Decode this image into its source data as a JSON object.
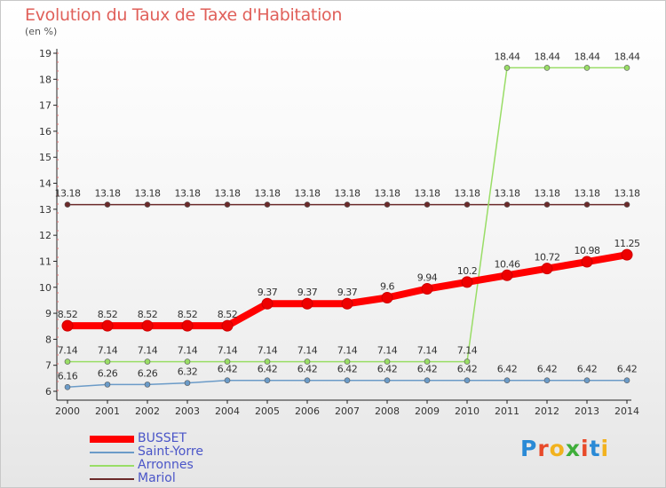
{
  "title": "Evolution du Taux de Taxe d'Habitation",
  "unit": "(en %)",
  "logo_text": "Proxiti",
  "chart_data": {
    "type": "line",
    "title": "Evolution du Taux de Taxe d'Habitation",
    "ylabel": "(en %)",
    "x": [
      "2000",
      "2001",
      "2002",
      "2003",
      "2004",
      "2005",
      "2006",
      "2007",
      "2008",
      "2009",
      "2010",
      "2011",
      "2012",
      "2013",
      "2014"
    ],
    "yticks": [
      "6",
      "7",
      "8",
      "9",
      "10",
      "11",
      "12",
      "13",
      "14",
      "15",
      "16",
      "17",
      "18",
      "19"
    ],
    "ylim": [
      6,
      19
    ],
    "grid": false,
    "legend_position": "bottom-left",
    "series": [
      {
        "name": "BUSSET",
        "color": "#ff0000",
        "values": [
          8.52,
          8.52,
          8.52,
          8.52,
          8.52,
          9.37,
          9.37,
          9.37,
          9.6,
          9.94,
          10.2,
          10.46,
          10.72,
          10.98,
          11.25
        ],
        "labels": [
          "8.52",
          "8.52",
          "8.52",
          "8.52",
          "8.52",
          "9.37",
          "9.37",
          "9.37",
          "9.6",
          "9.94",
          "10.2",
          "10.46",
          "10.72",
          "10.98",
          "11.25"
        ]
      },
      {
        "name": "Saint-Yorre",
        "color": "#6b9bc8",
        "values": [
          6.16,
          6.26,
          6.26,
          6.32,
          6.42,
          6.42,
          6.42,
          6.42,
          6.42,
          6.42,
          6.42,
          6.42,
          6.42,
          6.42,
          6.42
        ],
        "labels": [
          "6.16",
          "6.26",
          "6.26",
          "6.32",
          "6.42",
          "6.42",
          "6.42",
          "6.42",
          "6.42",
          "6.42",
          "6.42",
          "6.42",
          "6.42",
          "6.42",
          "6.42"
        ]
      },
      {
        "name": "Arronnes",
        "color": "#99dd66",
        "values": [
          7.14,
          7.14,
          7.14,
          7.14,
          7.14,
          7.14,
          7.14,
          7.14,
          7.14,
          7.14,
          7.14,
          18.44,
          18.44,
          18.44,
          18.44
        ],
        "labels": [
          "7.14",
          "7.14",
          "7.14",
          "7.14",
          "7.14",
          "7.14",
          "7.14",
          "7.14",
          "7.14",
          "7.14",
          "7.14",
          "18.44",
          "18.44",
          "18.44",
          "18.44"
        ]
      },
      {
        "name": "Mariol",
        "color": "#6b2a2a",
        "values": [
          13.18,
          13.18,
          13.18,
          13.18,
          13.18,
          13.18,
          13.18,
          13.18,
          13.18,
          13.18,
          13.18,
          13.18,
          13.18,
          13.18,
          13.18
        ],
        "labels": [
          "13.18",
          "13.18",
          "13.18",
          "13.18",
          "13.18",
          "13.18",
          "13.18",
          "13.18",
          "13.18",
          "13.18",
          "13.18",
          "13.18",
          "13.18",
          "13.18",
          "13.18"
        ]
      }
    ]
  }
}
